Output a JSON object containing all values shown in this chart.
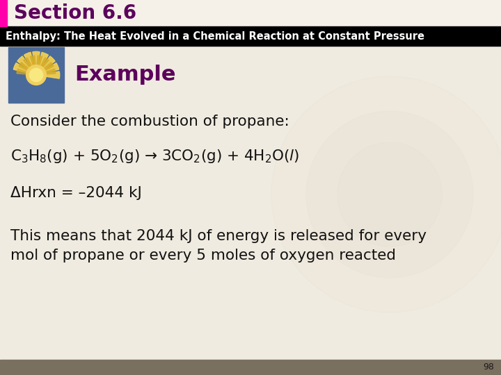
{
  "title": "Section 6.6",
  "title_color": "#5C005C",
  "title_bg": "#F5F0E8",
  "title_bar_color": "#FF00AA",
  "subtitle": "Enthalpy: The Heat Evolved in a Chemical Reaction at Constant Pressure",
  "subtitle_color": "#FFFFFF",
  "subtitle_bg": "#000000",
  "body_bg": "#F0EBE0",
  "example_label": "Example",
  "example_color": "#5C005C",
  "line1": "Consider the combustion of propane:",
  "line3": "ΔHrxn = –2044 kJ",
  "line4_1": "This means that 2044 kJ of energy is released for every",
  "line4_2": "mol of propane or every 5 moles of oxygen reacted",
  "text_color": "#111111",
  "page_number": "98",
  "bottom_bar_color": "#7A7060",
  "watermark_color": "#E0D8CC"
}
